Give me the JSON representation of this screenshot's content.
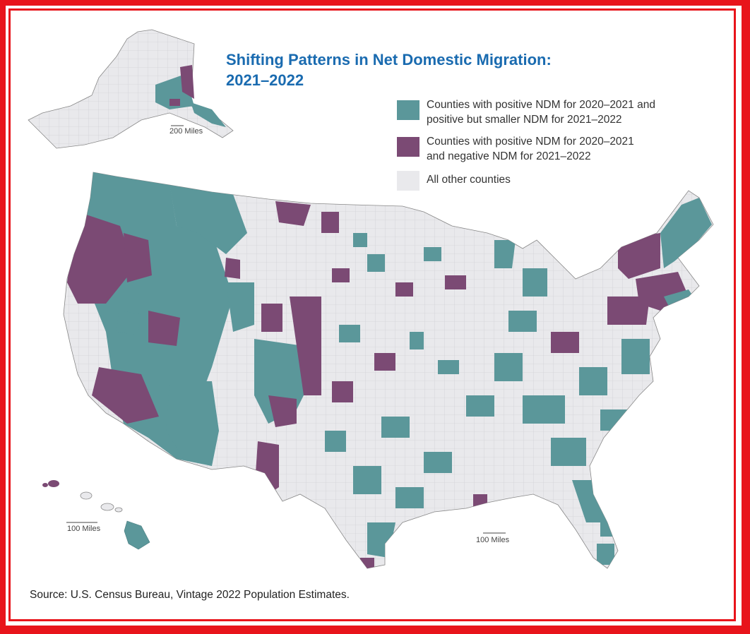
{
  "title": {
    "line1": "Shifting Patterns in Net Domestic Migration:",
    "line2": "2021–2022"
  },
  "legend": [
    {
      "label": "Counties with positive NDM for 2020–2021 and\npositive but smaller NDM for 2021–2022",
      "color": "#5b979a"
    },
    {
      "label": "Counties with positive NDM for 2020–2021\nand negative NDM for 2021–2022",
      "color": "#7b4a74"
    },
    {
      "label": "All other counties",
      "color": "#e9e9ec"
    }
  ],
  "scales": {
    "alaska": "200 Miles",
    "hawaii": "100 Miles",
    "mainland": "100 Miles"
  },
  "source": "Source: U.S. Census Bureau, Vintage 2022 Population Estimates.",
  "colors": {
    "teal": "#5b979a",
    "purple": "#7b4a74",
    "other": "#e9e9ec",
    "border": "#e8141b",
    "title": "#1a6bb0"
  }
}
